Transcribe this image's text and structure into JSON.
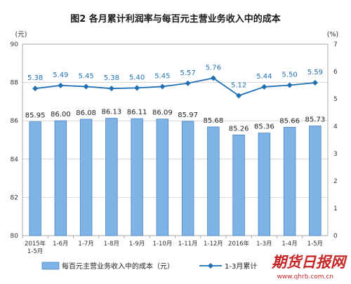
{
  "title": "图2  各月累计利润率与每百元主营业务收入中的成本",
  "left_unit": "(元)",
  "right_unit": "(%)",
  "legend": {
    "bar": "每百元主营业务收入中的成本（元）",
    "line": "1-3月累计"
  },
  "watermark": {
    "main": "期货日报网",
    "sub": "www.qhrb.com.cn"
  },
  "colors": {
    "bar_fill": "#7fb2e5",
    "bar_stroke": "#4a86c5",
    "line": "#1f6fb5",
    "grid": "#cfcfcf",
    "watermark": "#c62828"
  },
  "chart_data": {
    "type": "bar",
    "title": "图2  各月累计利润率与每百元主营业务收入中的成本",
    "categories": [
      [
        "2015年",
        "1-5月"
      ],
      [
        "1-6月"
      ],
      [
        "1-7月"
      ],
      [
        "1-8月"
      ],
      [
        "1-9月"
      ],
      [
        "1-10月"
      ],
      [
        "1-11月"
      ],
      [
        "1-12月"
      ],
      [
        "2016年"
      ],
      [
        "1-3月"
      ],
      [
        "1-4月"
      ],
      [
        "1-5月"
      ]
    ],
    "series": [
      {
        "name": "每百元主营业务收入中的成本（元）",
        "axis": "left",
        "type": "bar",
        "values": [
          85.95,
          86.0,
          86.08,
          86.13,
          86.11,
          86.09,
          85.97,
          85.68,
          85.26,
          85.36,
          85.66,
          85.73
        ],
        "labels": [
          "85.95",
          "86.00",
          "86.08",
          "86.13",
          "86.11",
          "86.09",
          "85.97",
          "85.68",
          "85.26",
          "85.36",
          "85.66",
          "85.73"
        ]
      },
      {
        "name": "1-3月累计",
        "axis": "right",
        "type": "line",
        "values": [
          5.38,
          5.49,
          5.45,
          5.38,
          5.4,
          5.45,
          5.57,
          5.76,
          5.12,
          5.44,
          5.5,
          5.59
        ],
        "labels": [
          "5.38",
          "5.49",
          "5.45",
          "5.38",
          "5.40",
          "5.45",
          "5.57",
          "5.76",
          "5.12",
          "5.44",
          "5.50",
          "5.59"
        ]
      }
    ],
    "ylim_left": [
      80,
      90
    ],
    "yticks_left": [
      "80",
      "82",
      "84",
      "86",
      "88",
      "90"
    ],
    "ylim_right": [
      0,
      7
    ],
    "yticks_right": [
      "0",
      "1",
      "2",
      "3",
      "4",
      "5",
      "6",
      "7"
    ],
    "grid": true,
    "legend_position": "bottom"
  }
}
